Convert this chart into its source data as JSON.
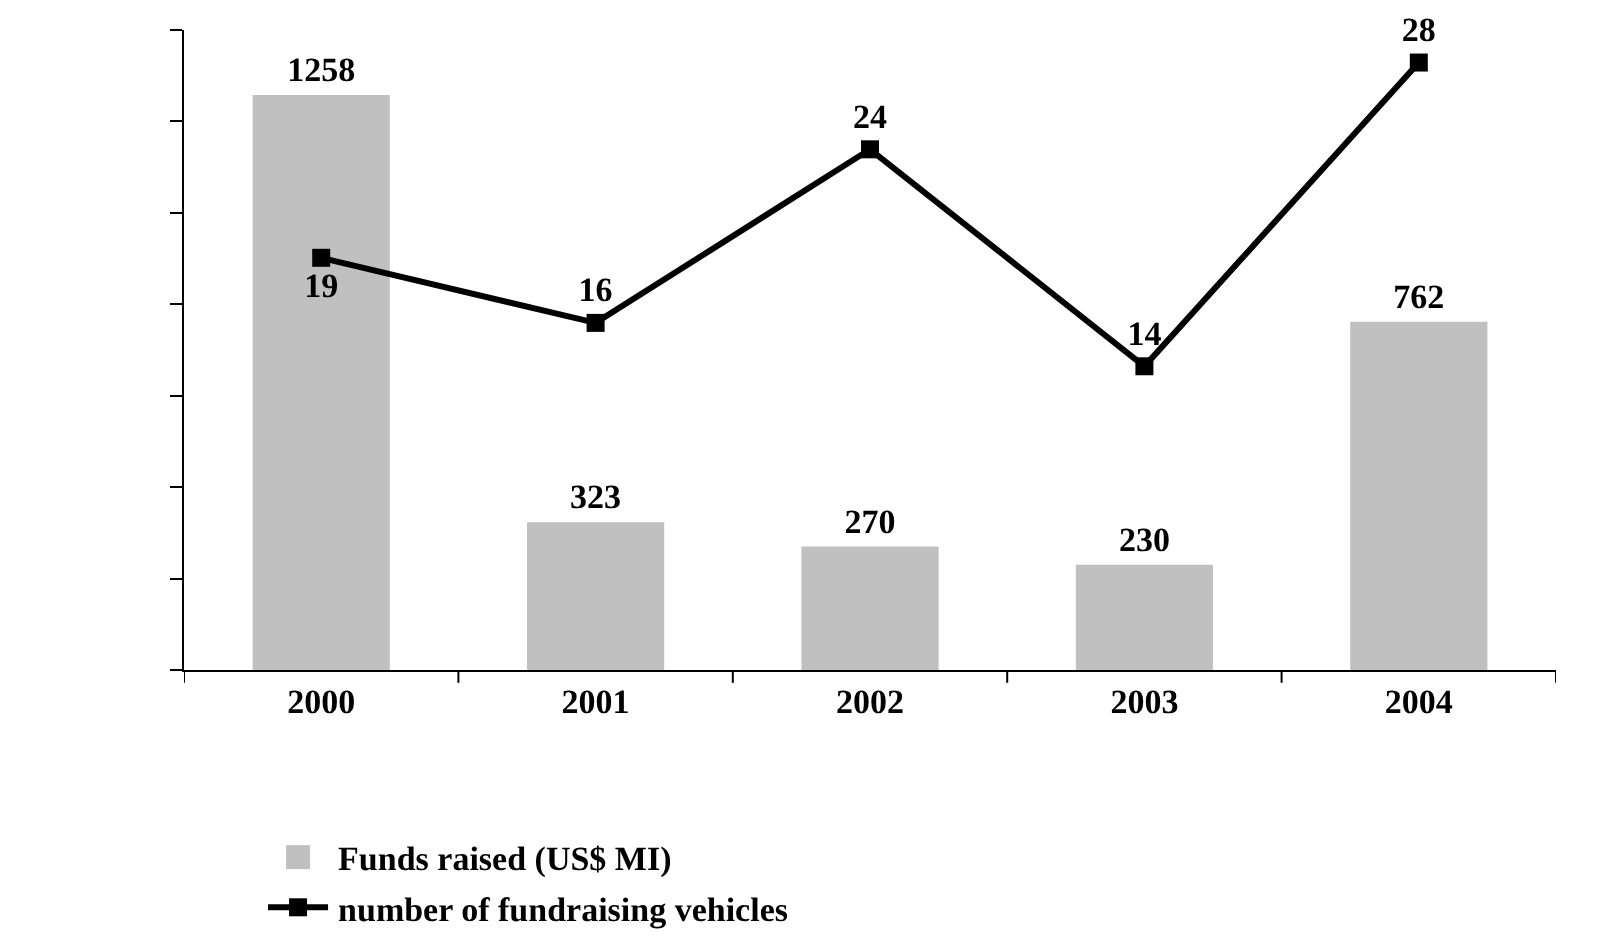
{
  "chart_data": {
    "type": "bar",
    "categories": [
      "2000",
      "2001",
      "2002",
      "2003",
      "2004"
    ],
    "series": [
      {
        "name": "Funds raised (US$ MI)",
        "color": "#c0c0c0",
        "values": [
          1258,
          323,
          270,
          230,
          762
        ]
      },
      {
        "name": "number of fundraising vehicles",
        "type": "line",
        "axis": "y2",
        "color": "#000000",
        "values": [
          19,
          16,
          24,
          14,
          28
        ]
      }
    ],
    "ylim": [
      0,
      1400
    ],
    "yticks": [
      {
        "value": 0,
        "label": null
      },
      {
        "value": 200,
        "label": null
      },
      {
        "value": 400,
        "label": null
      },
      {
        "value": 600,
        "label": null
      },
      {
        "value": 800,
        "label": null
      },
      {
        "value": 1000,
        "label": null
      },
      {
        "value": 1200,
        "label": null
      },
      {
        "value": 1400,
        "label": null
      }
    ],
    "y2lim": [
      0,
      29.5
    ],
    "tick_labels": "x",
    "data_labels": true,
    "grid": false,
    "legend": "bottom",
    "marker": "square",
    "line_style": "solid"
  }
}
